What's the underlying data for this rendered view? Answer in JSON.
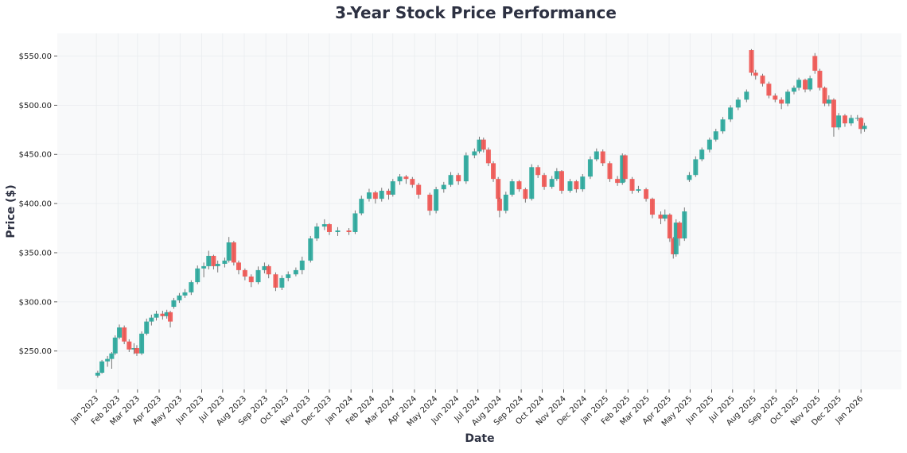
{
  "chart_data": {
    "type": "candlestick",
    "title": "3-Year Stock Price Performance",
    "xlabel": "Date",
    "ylabel": "Price ($)",
    "ylim": [
      211,
      573
    ],
    "xlim": [
      "2022-11-06",
      "2026-02-28"
    ],
    "grid": true,
    "colors": {
      "up": "#26a69a",
      "down": "#ef5350",
      "plot_bg": "#f8f9fa",
      "grid": "#e9ecef",
      "title": "#2d3142"
    },
    "y_ticks": [
      {
        "value": 250,
        "label": "$250.00"
      },
      {
        "value": 300,
        "label": "$300.00"
      },
      {
        "value": 350,
        "label": "$350.00"
      },
      {
        "value": 400,
        "label": "$400.00"
      },
      {
        "value": 450,
        "label": "$450.00"
      },
      {
        "value": 500,
        "label": "$500.00"
      },
      {
        "value": 550,
        "label": "$550.00"
      }
    ],
    "x_ticks": [
      {
        "date": "2023-01-01",
        "label": "Jan 2023"
      },
      {
        "date": "2023-02-01",
        "label": "Feb 2023"
      },
      {
        "date": "2023-03-01",
        "label": "Mar 2023"
      },
      {
        "date": "2023-04-01",
        "label": "Apr 2023"
      },
      {
        "date": "2023-05-01",
        "label": "May 2023"
      },
      {
        "date": "2023-06-01",
        "label": "Jun 2023"
      },
      {
        "date": "2023-07-01",
        "label": "Jul 2023"
      },
      {
        "date": "2023-08-01",
        "label": "Aug 2023"
      },
      {
        "date": "2023-09-01",
        "label": "Sep 2023"
      },
      {
        "date": "2023-10-01",
        "label": "Oct 2023"
      },
      {
        "date": "2023-11-01",
        "label": "Nov 2023"
      },
      {
        "date": "2023-12-01",
        "label": "Dec 2023"
      },
      {
        "date": "2024-01-01",
        "label": "Jan 2024"
      },
      {
        "date": "2024-02-01",
        "label": "Feb 2024"
      },
      {
        "date": "2024-03-01",
        "label": "Mar 2024"
      },
      {
        "date": "2024-04-01",
        "label": "Apr 2024"
      },
      {
        "date": "2024-05-01",
        "label": "May 2024"
      },
      {
        "date": "2024-06-01",
        "label": "Jun 2024"
      },
      {
        "date": "2024-07-01",
        "label": "Jul 2024"
      },
      {
        "date": "2024-08-01",
        "label": "Aug 2024"
      },
      {
        "date": "2024-09-01",
        "label": "Sep 2024"
      },
      {
        "date": "2024-10-01",
        "label": "Oct 2024"
      },
      {
        "date": "2024-11-01",
        "label": "Nov 2024"
      },
      {
        "date": "2024-12-01",
        "label": "Dec 2024"
      },
      {
        "date": "2025-01-01",
        "label": "Jan 2025"
      },
      {
        "date": "2025-02-01",
        "label": "Feb 2025"
      },
      {
        "date": "2025-03-01",
        "label": "Mar 2025"
      },
      {
        "date": "2025-04-01",
        "label": "Apr 2025"
      },
      {
        "date": "2025-05-01",
        "label": "May 2025"
      },
      {
        "date": "2025-06-01",
        "label": "Jun 2025"
      },
      {
        "date": "2025-07-01",
        "label": "Jul 2025"
      },
      {
        "date": "2025-08-01",
        "label": "Aug 2025"
      },
      {
        "date": "2025-09-01",
        "label": "Sep 2025"
      },
      {
        "date": "2025-10-01",
        "label": "Oct 2025"
      },
      {
        "date": "2025-11-01",
        "label": "Nov 2025"
      },
      {
        "date": "2025-12-01",
        "label": "Dec 2025"
      },
      {
        "date": "2026-01-01",
        "label": "Jan 2026"
      }
    ],
    "candle_fields": [
      "date",
      "open",
      "high",
      "low",
      "close"
    ],
    "candles": [
      [
        "2023-01-03",
        225,
        230,
        223,
        228
      ],
      [
        "2023-01-09",
        228,
        241,
        227,
        239.5
      ],
      [
        "2023-01-17",
        239.5,
        245,
        234,
        242
      ],
      [
        "2023-01-23",
        242,
        249,
        232,
        247.6
      ],
      [
        "2023-01-28",
        247.6,
        266,
        246,
        263.7
      ],
      [
        "2023-02-03",
        263.7,
        277,
        262,
        274
      ],
      [
        "2023-02-10",
        274,
        276,
        257,
        259.7
      ],
      [
        "2023-02-17",
        259.7,
        262,
        249,
        251.6
      ],
      [
        "2023-02-24",
        251.6,
        258,
        247,
        253
      ],
      [
        "2023-02-28",
        253,
        256,
        245,
        247.6
      ],
      [
        "2023-03-07",
        247.6,
        270,
        246,
        267.7
      ],
      [
        "2023-03-14",
        267.7,
        283,
        266,
        280
      ],
      [
        "2023-03-21",
        280,
        287,
        276,
        284
      ],
      [
        "2023-03-28",
        284,
        291,
        281,
        288
      ],
      [
        "2023-04-06",
        288,
        291,
        282,
        285.5
      ],
      [
        "2023-04-12",
        285.5,
        292,
        283,
        289.5
      ],
      [
        "2023-04-17",
        289.5,
        291,
        274,
        280
      ],
      [
        "2023-04-22",
        295,
        304,
        293,
        301.6
      ],
      [
        "2023-04-30",
        301.6,
        309,
        299,
        306.5
      ],
      [
        "2023-05-08",
        306.5,
        313,
        304,
        309.7
      ],
      [
        "2023-05-17",
        309.7,
        322,
        307,
        320
      ],
      [
        "2023-05-26",
        320,
        337,
        318,
        334
      ],
      [
        "2023-06-04",
        334,
        340,
        325,
        336.3
      ],
      [
        "2023-06-11",
        336.3,
        352,
        333,
        346.8
      ],
      [
        "2023-06-18",
        346.8,
        348,
        333,
        336.3
      ],
      [
        "2023-06-24",
        336.3,
        342,
        330,
        338.7
      ],
      [
        "2023-07-04",
        338.7,
        345,
        335,
        342
      ],
      [
        "2023-07-10",
        342,
        366,
        340,
        360.5
      ],
      [
        "2023-07-17",
        360.5,
        362,
        337,
        340
      ],
      [
        "2023-07-24",
        340,
        342,
        328,
        332.3
      ],
      [
        "2023-08-02",
        332.3,
        334,
        322,
        325.8
      ],
      [
        "2023-08-11",
        325.8,
        328,
        315,
        320
      ],
      [
        "2023-08-21",
        320,
        336,
        318,
        332.3
      ],
      [
        "2023-08-30",
        332.3,
        340,
        329,
        336.3
      ],
      [
        "2023-09-05",
        336.3,
        338,
        324,
        328
      ],
      [
        "2023-09-15",
        328,
        330,
        311,
        314.5
      ],
      [
        "2023-09-24",
        314.5,
        327,
        312,
        324.2
      ],
      [
        "2023-10-03",
        324.2,
        331,
        321,
        328
      ],
      [
        "2023-10-14",
        328,
        335,
        326,
        332.3
      ],
      [
        "2023-10-23",
        332.3,
        346,
        328,
        342
      ],
      [
        "2023-11-04",
        342,
        367,
        340,
        364.5
      ],
      [
        "2023-11-13",
        364.5,
        380,
        362,
        376.6
      ],
      [
        "2023-11-24",
        376.6,
        384,
        373,
        379
      ],
      [
        "2023-12-01",
        379,
        380,
        368,
        371
      ],
      [
        "2023-12-13",
        371,
        376,
        367,
        372.6
      ],
      [
        "2023-12-29",
        372.6,
        375,
        368,
        371
      ],
      [
        "2024-01-07",
        371,
        393,
        369,
        390
      ],
      [
        "2024-01-16",
        390,
        408,
        388,
        404.8
      ],
      [
        "2024-01-27",
        404.8,
        415,
        402,
        411.3
      ],
      [
        "2024-02-05",
        411.3,
        413,
        400,
        404.8
      ],
      [
        "2024-02-14",
        404.8,
        416,
        402,
        413
      ],
      [
        "2024-02-24",
        413,
        415,
        404,
        409
      ],
      [
        "2024-03-01",
        409,
        425,
        407,
        422.6
      ],
      [
        "2024-03-11",
        422.6,
        430,
        419,
        427.4
      ],
      [
        "2024-03-20",
        427.4,
        429,
        420,
        425
      ],
      [
        "2024-03-29",
        425,
        427,
        416,
        419
      ],
      [
        "2024-04-07",
        419,
        421,
        405,
        409
      ],
      [
        "2024-04-23",
        409,
        411,
        388,
        392.7
      ],
      [
        "2024-05-02",
        392.7,
        417,
        390,
        414.5
      ],
      [
        "2024-05-13",
        414.5,
        422,
        411,
        419
      ],
      [
        "2024-05-23",
        419,
        432,
        417,
        429
      ],
      [
        "2024-06-03",
        429,
        431,
        419,
        422.6
      ],
      [
        "2024-06-14",
        422.6,
        452,
        420,
        449
      ],
      [
        "2024-06-26",
        449,
        456,
        446,
        453
      ],
      [
        "2024-07-03",
        453,
        468,
        451,
        465
      ],
      [
        "2024-07-09",
        465,
        467,
        452,
        454.8
      ],
      [
        "2024-07-16",
        454.8,
        457,
        438,
        441
      ],
      [
        "2024-07-23",
        441,
        443,
        422,
        425
      ],
      [
        "2024-07-30",
        425,
        427,
        402,
        404.8
      ],
      [
        "2024-08-01",
        404.8,
        406,
        386,
        392.7
      ],
      [
        "2024-08-10",
        392.7,
        412,
        390,
        409
      ],
      [
        "2024-08-19",
        409,
        425,
        407,
        422.6
      ],
      [
        "2024-08-29",
        422.6,
        424,
        412,
        414.5
      ],
      [
        "2024-09-07",
        414.5,
        416,
        401,
        404.8
      ],
      [
        "2024-09-16",
        404.8,
        440,
        403,
        437
      ],
      [
        "2024-09-25",
        437,
        439,
        426,
        429
      ],
      [
        "2024-10-04",
        429,
        431,
        414,
        417
      ],
      [
        "2024-10-15",
        417,
        428,
        415,
        425
      ],
      [
        "2024-10-22",
        425,
        436,
        423,
        433
      ],
      [
        "2024-10-29",
        433,
        434,
        410,
        413
      ],
      [
        "2024-11-10",
        413,
        425,
        411,
        422.6
      ],
      [
        "2024-11-19",
        422.6,
        424,
        411,
        414.5
      ],
      [
        "2024-11-28",
        414.5,
        430,
        412,
        427.4
      ],
      [
        "2024-12-09",
        427.4,
        448,
        425,
        445
      ],
      [
        "2024-12-18",
        445,
        456,
        443,
        453
      ],
      [
        "2024-12-27",
        453,
        455,
        438,
        441
      ],
      [
        "2025-01-06",
        441,
        443,
        422,
        425
      ],
      [
        "2025-01-17",
        425,
        428,
        418,
        421
      ],
      [
        "2025-01-24",
        421,
        451,
        419,
        449
      ],
      [
        "2025-01-28",
        449,
        450,
        422,
        425
      ],
      [
        "2025-02-07",
        425,
        427,
        410,
        413
      ],
      [
        "2025-02-16",
        413,
        418,
        411,
        414.5
      ],
      [
        "2025-02-27",
        414.5,
        416,
        402,
        404.8
      ],
      [
        "2025-03-08",
        404.8,
        406,
        385,
        388.7
      ],
      [
        "2025-03-20",
        388.7,
        392,
        379,
        384.7
      ],
      [
        "2025-03-26",
        384.7,
        394,
        382,
        388.7
      ],
      [
        "2025-04-02",
        388.7,
        390,
        361,
        364.5
      ],
      [
        "2025-04-07",
        364.5,
        366,
        344,
        348.4
      ],
      [
        "2025-04-11",
        348.4,
        384,
        346,
        380.6
      ],
      [
        "2025-04-16",
        380.6,
        382,
        357,
        364.5
      ],
      [
        "2025-04-23",
        364.5,
        396,
        362,
        392
      ],
      [
        "2025-04-30",
        424,
        432,
        422,
        429
      ],
      [
        "2025-05-09",
        429,
        448,
        427,
        445
      ],
      [
        "2025-05-18",
        445,
        457,
        443,
        454.8
      ],
      [
        "2025-05-29",
        454.8,
        467,
        452,
        465
      ],
      [
        "2025-06-07",
        465,
        476,
        463,
        473.4
      ],
      [
        "2025-06-17",
        473.4,
        488,
        471,
        485.5
      ],
      [
        "2025-06-28",
        485.5,
        500,
        483,
        497.6
      ],
      [
        "2025-07-09",
        497.6,
        508,
        495,
        505.6
      ],
      [
        "2025-07-21",
        505.6,
        516,
        503,
        513.7
      ],
      [
        "2025-07-28",
        556,
        557,
        530,
        533
      ],
      [
        "2025-08-03",
        533,
        536,
        526,
        530
      ],
      [
        "2025-08-13",
        530,
        532,
        519,
        521.8
      ],
      [
        "2025-08-22",
        521.8,
        524,
        507,
        509.7
      ],
      [
        "2025-08-31",
        509.7,
        512,
        503,
        505.6
      ],
      [
        "2025-09-09",
        505.6,
        508,
        496,
        501.6
      ],
      [
        "2025-09-18",
        501.6,
        516,
        499,
        513.7
      ],
      [
        "2025-09-27",
        513.7,
        520,
        511,
        517.7
      ],
      [
        "2025-10-04",
        517.7,
        528,
        515,
        525.8
      ],
      [
        "2025-10-13",
        525.8,
        527,
        513,
        516
      ],
      [
        "2025-10-20",
        516,
        530,
        514,
        527.4
      ],
      [
        "2025-10-27",
        550,
        553,
        532,
        535
      ],
      [
        "2025-11-03",
        535,
        537,
        515,
        517.7
      ],
      [
        "2025-11-10",
        517.7,
        519,
        499,
        501.6
      ],
      [
        "2025-11-16",
        501.6,
        510,
        499,
        505.6
      ],
      [
        "2025-11-23",
        505.6,
        507,
        468,
        477.4
      ],
      [
        "2025-11-30",
        477.4,
        492,
        475,
        489.5
      ],
      [
        "2025-12-09",
        489.5,
        491,
        478,
        481.5
      ],
      [
        "2025-12-18",
        481.5,
        490,
        479,
        487
      ],
      [
        "2025-12-27",
        487,
        490,
        484,
        487
      ],
      [
        "2026-01-01",
        487,
        488,
        471,
        475.8
      ],
      [
        "2026-01-06",
        475.8,
        482,
        473,
        479
      ]
    ]
  }
}
